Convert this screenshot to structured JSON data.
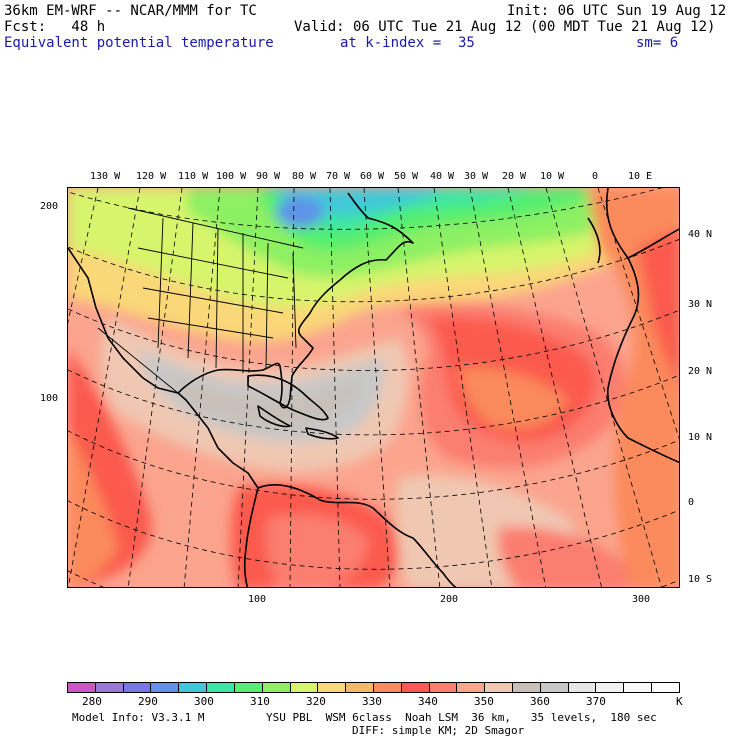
{
  "header": {
    "model_line": "36km EM-WRF -- NCAR/MMM for TC",
    "init_line": "Init: 06 UTC Sun 19 Aug 12",
    "fcst_line": "Fcst:   48 h",
    "valid_line": "Valid: 06 UTC Tue 21 Aug 12 (00 MDT Tue 21 Aug 12)",
    "field_name": "Equivalent potential temperature",
    "level_label": "at k-index =  35",
    "smoothing_label": "sm= 6"
  },
  "map": {
    "longitude_labels": [
      "130 W",
      "120 W",
      "110 W",
      "100 W",
      "90 W",
      "80 W",
      "70 W",
      "60 W",
      "50 W",
      "40 W",
      "30 W",
      "20 W",
      "10 W",
      "0",
      "10 E"
    ],
    "latitude_labels": [
      "40 N",
      "30 N",
      "20 N",
      "10 N",
      "0",
      "10 S"
    ],
    "grid_left_labels": [
      "200",
      "100"
    ],
    "grid_bottom_labels": [
      "100",
      "200",
      "300"
    ]
  },
  "colorbar": {
    "colors": [
      "#cc55cc",
      "#9a78d8",
      "#7a78e6",
      "#5d93ea",
      "#3fc8d8",
      "#3de6a4",
      "#55ee70",
      "#8cf064",
      "#d6f46c",
      "#fad778",
      "#fbb768",
      "#fb8a5c",
      "#fb5a4e",
      "#fb7e70",
      "#fba48e",
      "#f0c8b2",
      "#c8c0b8",
      "#c8c8c8",
      "#e6e6e6",
      "#f2f2f2",
      "#fafafa",
      "#ffffff"
    ],
    "labels": [
      "280",
      "290",
      "300",
      "310",
      "320",
      "330",
      "340",
      "350",
      "360",
      "370"
    ],
    "unit": "K"
  },
  "footer": {
    "model_info": "Model Info: V3.3.1 M",
    "physics": "YSU PBL  WSM 6class  Noah LSM  36 km,   35 levels,  180 sec",
    "diffusion": "DIFF: simple KM; 2D Smagor"
  }
}
